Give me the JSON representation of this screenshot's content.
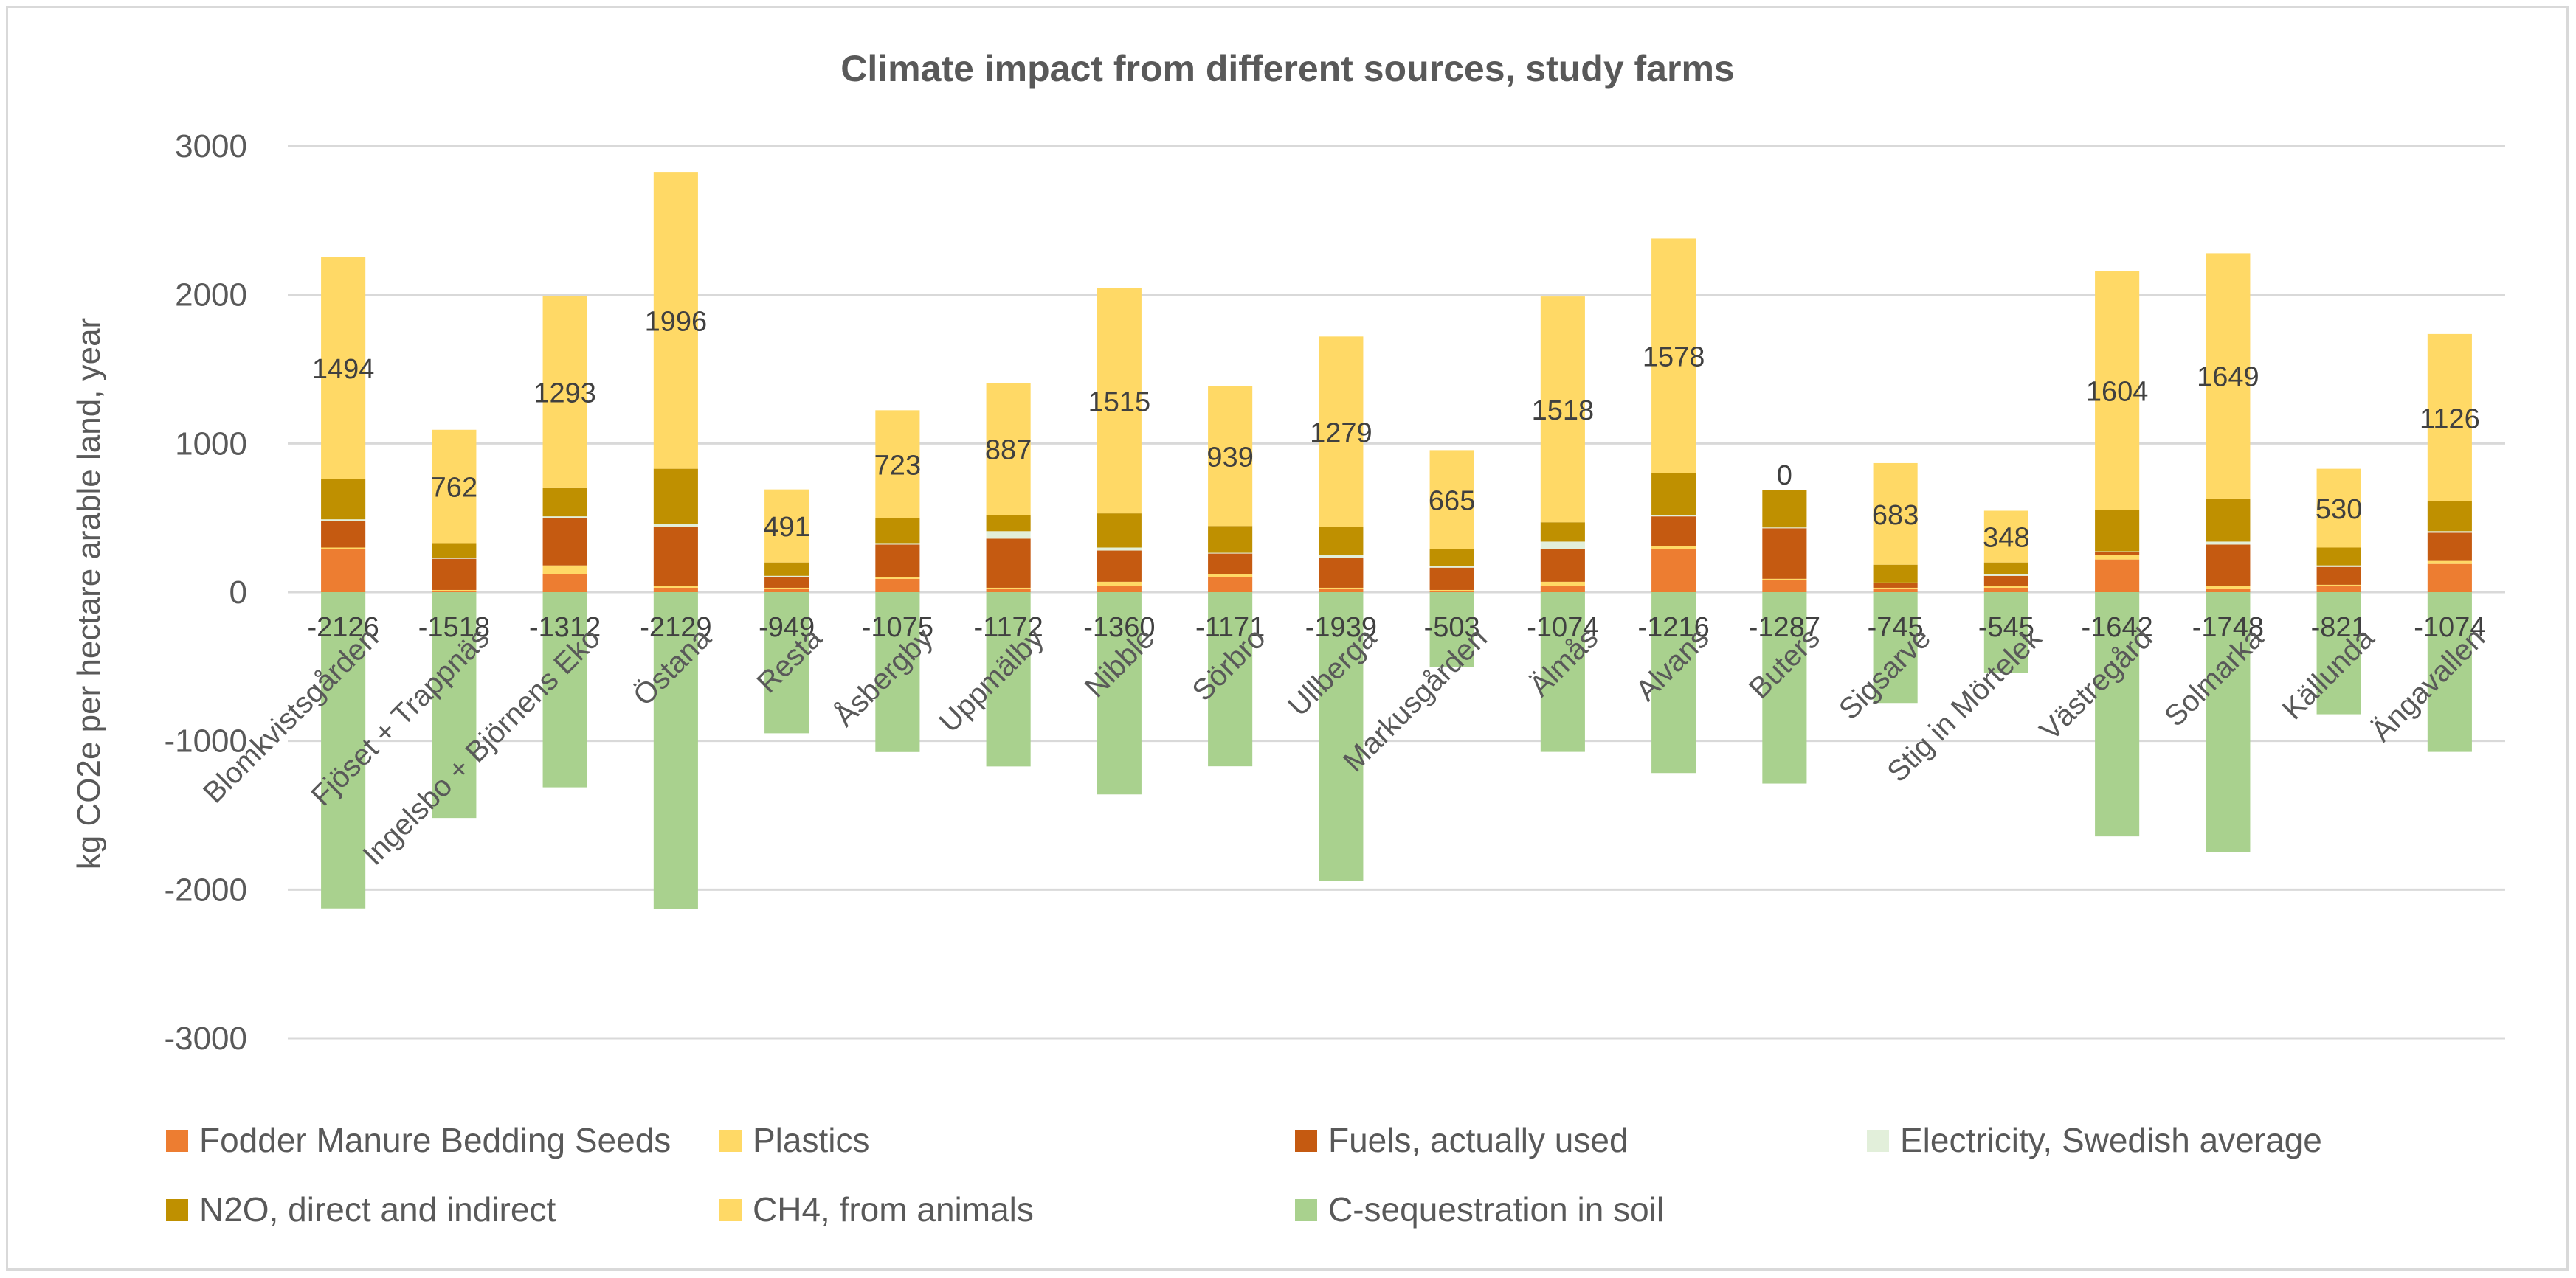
{
  "chart_data": {
    "type": "bar",
    "stacked": true,
    "title": "Climate impact from different sources, study farms",
    "ylabel": "kg CO2e per hectare arable land, year",
    "xlabel": "",
    "ylim": [
      -3000,
      3000
    ],
    "yticks": [
      3000,
      2000,
      1000,
      0,
      -1000,
      -2000,
      -3000
    ],
    "grid": true,
    "legend_position": "bottom",
    "categories": [
      "Blomkvistsgården",
      "Fjöset + Trappnäs",
      "Ingelsbo + Björnens Eko",
      "Östana",
      "Resta",
      "Åsbergby",
      "Uppmälby",
      "Nibble",
      "Sörbro",
      "Ullberga",
      "Markusgården",
      "Älmås",
      "Alvans",
      "Buters",
      "Sigsarve",
      "Stig in Mörtelek",
      "Västregård",
      "Solmarka",
      "Källunda",
      "Ängavallen"
    ],
    "series": [
      {
        "name": "Fodder Manure Bedding Seeds",
        "color": "#ed7d31",
        "values": [
          290,
          10,
          120,
          30,
          20,
          90,
          20,
          40,
          100,
          20,
          10,
          40,
          290,
          80,
          20,
          30,
          220,
          20,
          40,
          190
        ]
      },
      {
        "name": "Plastics",
        "color": "#ffd966",
        "values": [
          10,
          5,
          60,
          10,
          10,
          10,
          10,
          30,
          20,
          10,
          5,
          30,
          20,
          10,
          10,
          10,
          30,
          20,
          10,
          20
        ]
      },
      {
        "name": "Fuels, actually used",
        "color": "#c55a11",
        "values": [
          180,
          210,
          320,
          400,
          70,
          220,
          330,
          210,
          140,
          200,
          150,
          220,
          200,
          340,
          30,
          70,
          20,
          280,
          120,
          190
        ]
      },
      {
        "name": "Electricity, Swedish average",
        "color": "#e2efda",
        "values": [
          10,
          5,
          10,
          20,
          10,
          10,
          50,
          20,
          5,
          20,
          10,
          50,
          10,
          5,
          5,
          10,
          5,
          20,
          10,
          10
        ]
      },
      {
        "name": "N2O, direct and indirect",
        "color": "#bf9000",
        "values": [
          270,
          100,
          190,
          370,
          90,
          170,
          110,
          230,
          180,
          190,
          115,
          130,
          280,
          250,
          120,
          80,
          280,
          290,
          120,
          200
        ]
      },
      {
        "name": "CH4, from animals",
        "color": "#ffd966",
        "values": [
          1494,
          762,
          1293,
          1996,
          491,
          723,
          887,
          1515,
          939,
          1279,
          665,
          1518,
          1578,
          0,
          683,
          348,
          1604,
          1649,
          530,
          1126
        ]
      },
      {
        "name": "C-sequestration in soil",
        "color": "#a9d18e",
        "values": [
          -2126,
          -1518,
          -1312,
          -2129,
          -949,
          -1075,
          -1172,
          -1360,
          -1171,
          -1939,
          -503,
          -1074,
          -1216,
          -1287,
          -745,
          -545,
          -1642,
          -1748,
          -821,
          -1074
        ]
      }
    ],
    "data_labels": {
      "CH4, from animals": [
        "1494",
        "762",
        "1293",
        "1996",
        "491",
        "723",
        "887",
        "1515",
        "939",
        "1279",
        "665",
        "1518",
        "1578",
        "0",
        "683",
        "348",
        "1604",
        "1649",
        "530",
        "1126"
      ],
      "C-sequestration in soil": [
        "-2126",
        "-1518",
        "-1312",
        "-2129",
        "-949",
        "-1075",
        "-1172",
        "-1360",
        "-1171",
        "-1939",
        "-503",
        "-1074",
        "-1216",
        "-1287",
        "-745",
        "-545",
        "-1642",
        "-1748",
        "-821",
        "-1074"
      ]
    }
  }
}
